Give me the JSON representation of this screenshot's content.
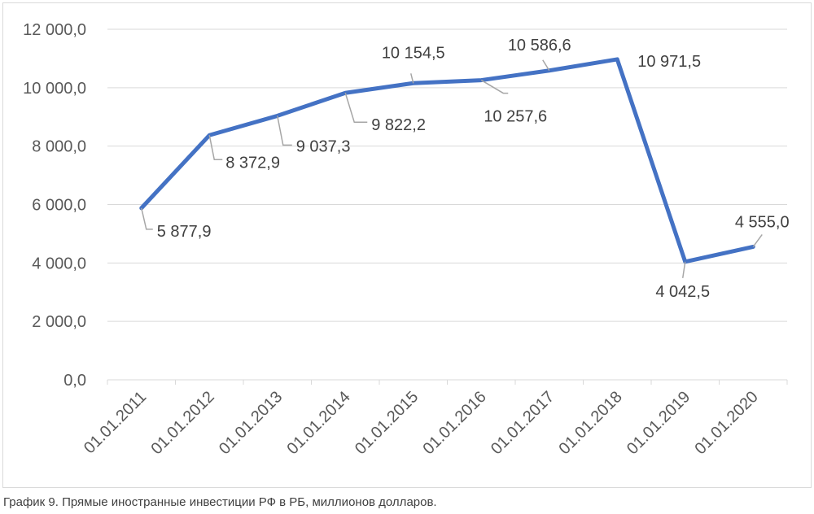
{
  "caption": "График 9. Прямые иностранные инвестиции РФ в РБ, миллионов долларов.",
  "colors": {
    "series": "#4472c4",
    "grid": "#d9d9d9",
    "leader": "#a6a6a6"
  },
  "chart_data": {
    "type": "line",
    "title": "",
    "xlabel": "",
    "ylabel": "",
    "categories": [
      "01.01.2011",
      "01.01.2012",
      "01.01.2013",
      "01.01.2014",
      "01.01.2015",
      "01.01.2016",
      "01.01.2017",
      "01.01.2018",
      "01.01.2019",
      "01.01.2020"
    ],
    "series": [
      {
        "values": [
          5877.9,
          8372.9,
          9037.3,
          9822.2,
          10154.5,
          10257.6,
          10586.6,
          10971.5,
          4042.5,
          4555.0
        ]
      }
    ],
    "data_labels": [
      "5 877,9",
      "8 372,9",
      "9 037,3",
      "9 822,2",
      "10 154,5",
      "10 257,6",
      "10 586,6",
      "10 971,5",
      "4 042,5",
      "4 555,0"
    ],
    "ylim": [
      0,
      12000
    ],
    "yticks": [
      0,
      2000,
      4000,
      6000,
      8000,
      10000,
      12000
    ],
    "ytick_labels": [
      "0,0",
      "2 000,0",
      "4 000,0",
      "6 000,0",
      "8 000,0",
      "10 000,0",
      "12 000,0"
    ],
    "grid": true,
    "legend": "none"
  }
}
